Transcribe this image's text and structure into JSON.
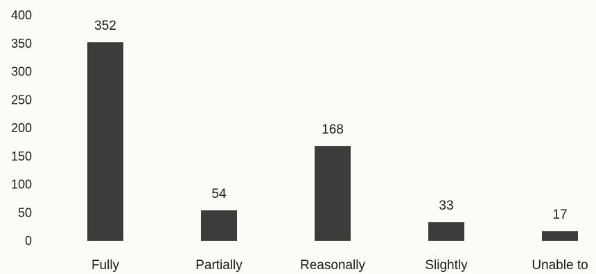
{
  "chart_data": {
    "type": "bar",
    "title": "",
    "xlabel": "",
    "ylabel": "",
    "categories": [
      "Fully",
      "Partially",
      "Reasonally",
      "Slightly",
      "Unable to"
    ],
    "values": [
      352,
      54,
      168,
      33,
      17
    ],
    "data_labels": [
      "352",
      "54",
      "168",
      "33",
      "17"
    ],
    "ylim": [
      0,
      400
    ],
    "yticks": [
      0,
      50,
      100,
      150,
      200,
      250,
      300,
      350,
      400
    ],
    "ytick_labels": [
      "0",
      "50",
      "100",
      "150",
      "200",
      "250",
      "300",
      "350",
      "400"
    ],
    "grid": false,
    "legend": "none",
    "colors": {
      "bar": "#3c3c3c",
      "text": "#1a1a1a",
      "background": "#fbfbf9"
    }
  }
}
